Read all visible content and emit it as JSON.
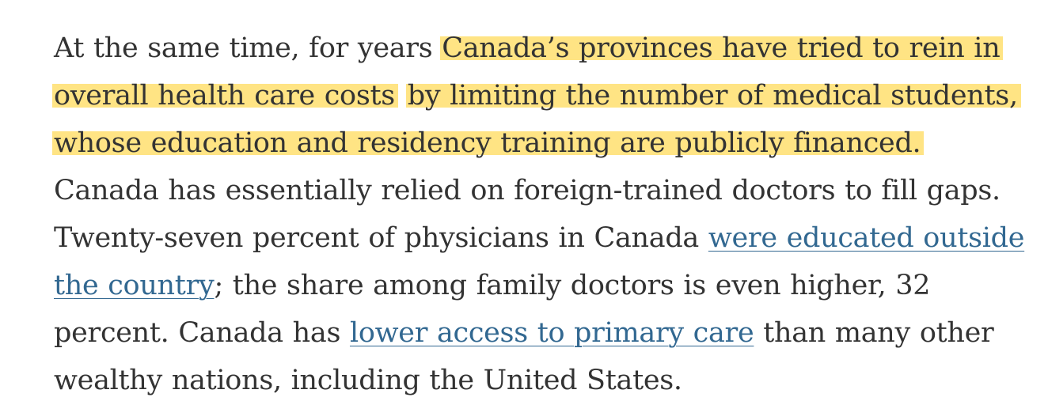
{
  "paragraph": {
    "part1": "At the same time, for years ",
    "highlight1": "Canada’s provinces have tried to rein in overall health care costs",
    "highlight2": "by limiting the number of medical students, whose education and residency training are publicly financed.",
    "part2": " Canada has essentially relied on foreign-trained doctors to fill gaps. Twenty-seven percent of physicians in Canada ",
    "link1": "were educated outside the country",
    "part3": "; the share among family doctors is even higher, 32 percent. Canada has ",
    "link2": "lower access to primary care",
    "part4": " than many other wealthy nations, including the United States."
  },
  "colors": {
    "text": "#333333",
    "link": "#326891",
    "highlight": "#FFDF6E"
  }
}
